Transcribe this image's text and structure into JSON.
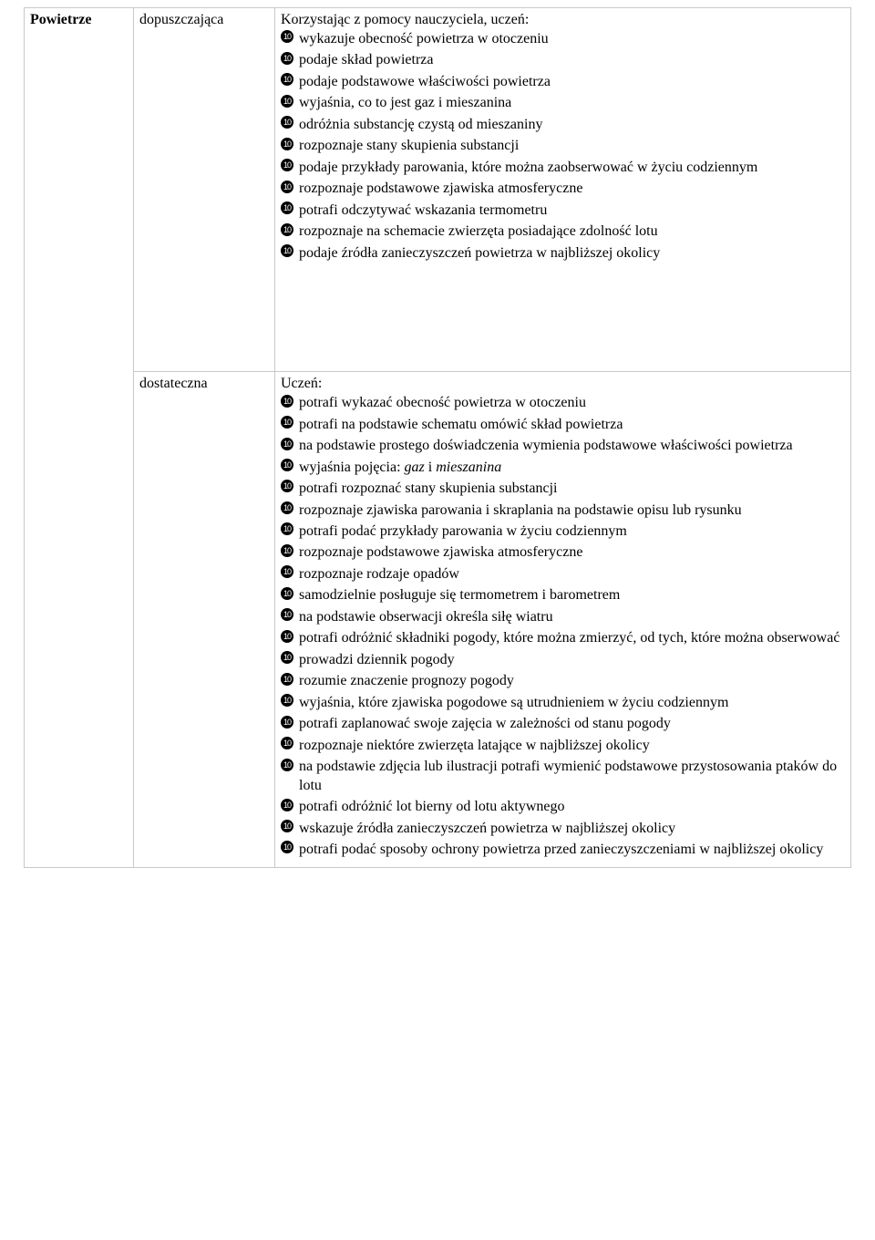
{
  "colors": {
    "border": "#c8c8c8",
    "text": "#000000",
    "background": "#ffffff",
    "bullet_bg": "#000000",
    "bullet_fg": "#ffffff"
  },
  "bullet_glyph": "10",
  "table": {
    "topic": "Powietrze",
    "sections": [
      {
        "grade": "dopuszczająca",
        "intro": "Korzystając z pomocy nauczyciela, uczeń:",
        "items": [
          "wykazuje obecność powietrza w otoczeniu",
          "podaje skład powietrza",
          "podaje podstawowe właściwości powietrza",
          "wyjaśnia, co to jest gaz i mieszanina",
          "odróżnia substancję czystą od mieszaniny",
          "rozpoznaje stany skupienia substancji",
          "podaje przykłady parowania, które można zaobserwować w życiu codziennym",
          "rozpoznaje podstawowe zjawiska atmosferyczne",
          "potrafi odczytywać wskazania termometru",
          "rozpoznaje na schemacie zwierzęta posiadające zdolność lotu",
          "podaje źródła zanieczyszczeń powietrza w najbliższej okolicy"
        ]
      },
      {
        "grade": "dostateczna",
        "intro": "Uczeń:",
        "items": [
          "potrafi wykazać obecność powietrza w otoczeniu",
          "potrafi na podstawie schematu omówić skład powietrza",
          "na podstawie prostego doświadczenia wymienia podstawowe właściwości powietrza",
          "wyjaśnia pojęcia: <em>gaz</em> i <em>mieszanina</em>",
          "potrafi rozpoznać stany skupienia substancji",
          "rozpoznaje zjawiska parowania i skraplania na podstawie opisu lub rysunku",
          "potrafi podać przykłady parowania w życiu codziennym",
          "rozpoznaje podstawowe zjawiska atmosferyczne",
          "rozpoznaje rodzaje opadów",
          "samodzielnie posługuje się termometrem i barometrem",
          "na podstawie obserwacji określa siłę wiatru",
          "potrafi odróżnić składniki pogody, które można zmierzyć, od tych, które można obserwować",
          "prowadzi dziennik pogody",
          "rozumie znaczenie prognozy pogody",
          "wyjaśnia, które zjawiska pogodowe są utrudnieniem w życiu codziennym",
          "potrafi zaplanować swoje zajęcia w zależności od stanu pogody",
          "rozpoznaje niektóre zwierzęta latające w najbliższej okolicy",
          "na podstawie zdjęcia lub ilustracji potrafi wymienić podstawowe przystosowania ptaków do lotu",
          "potrafi odróżnić lot bierny od lotu aktywnego",
          "wskazuje źródła zanieczyszczeń powietrza w najbliższej okolicy",
          "potrafi podać sposoby ochrony powietrza przed zanieczyszczeniami w najbliższej okolicy"
        ]
      }
    ]
  }
}
